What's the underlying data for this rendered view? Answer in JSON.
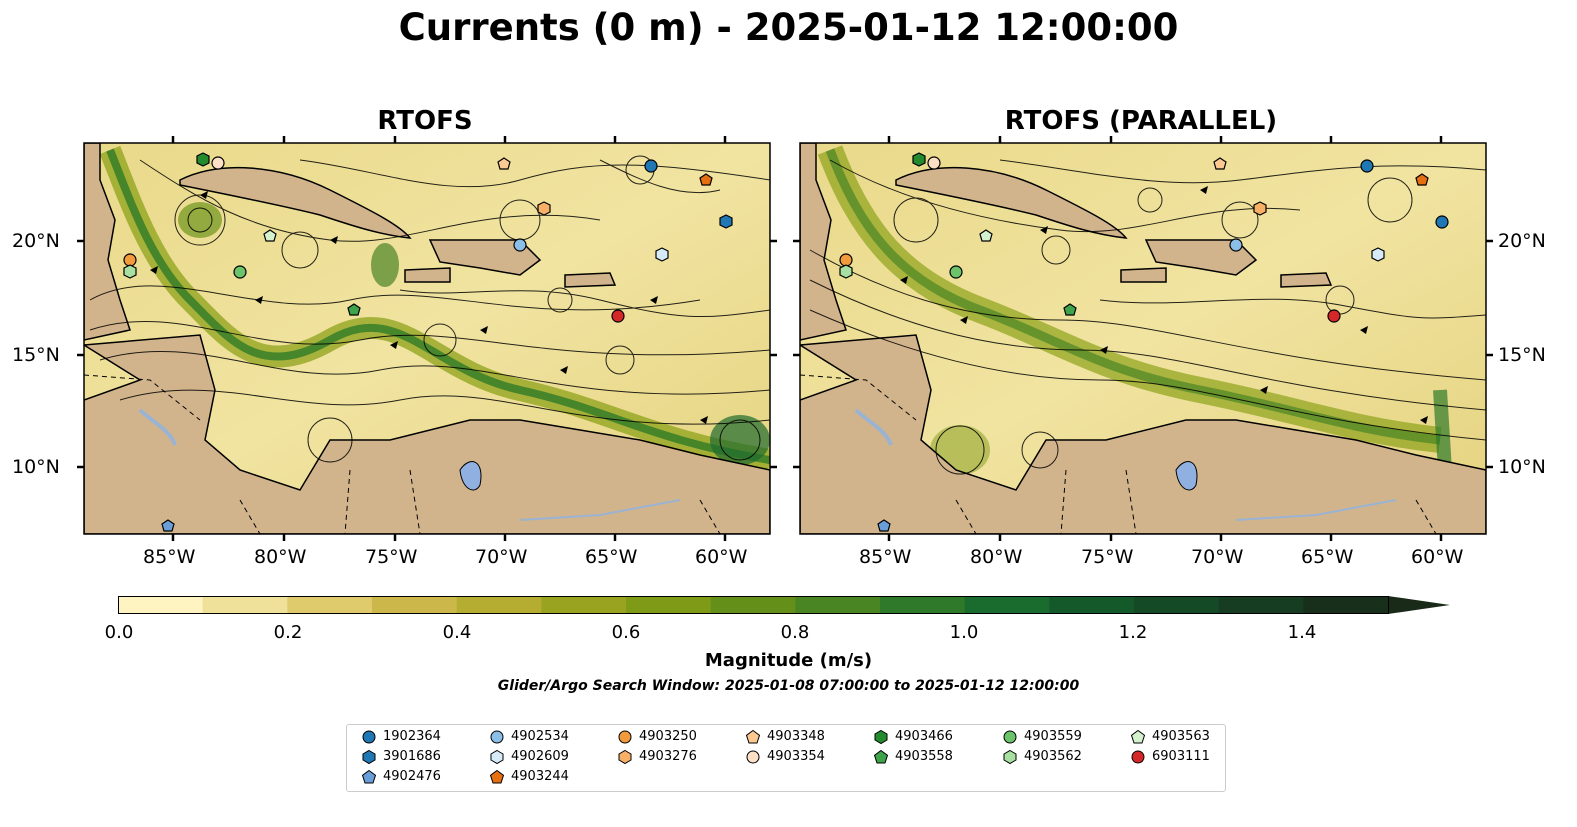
{
  "title": "Currents (0 m) - 2025-01-12 12:00:00",
  "panels": [
    {
      "title": "RTOFS"
    },
    {
      "title": "RTOFS (PARALLEL)"
    }
  ],
  "lat_labels": [
    "20°N",
    "15°N",
    "10°N"
  ],
  "lon_labels": [
    "85°W",
    "80°W",
    "75°W",
    "70°W",
    "65°W",
    "60°W"
  ],
  "colorbar": {
    "label": "Magnitude (m/s)",
    "ticks": [
      "0.0",
      "0.2",
      "0.4",
      "0.6",
      "0.8",
      "1.0",
      "1.2",
      "1.4"
    ],
    "colors": [
      "#fdf4c2",
      "#efe09a",
      "#dfca6c",
      "#ccb84a",
      "#b4ad32",
      "#9aa31f",
      "#7e9a16",
      "#64901a",
      "#4a8524",
      "#2e7a2a",
      "#1a6b2e",
      "#14592a",
      "#144a26",
      "#163c22",
      "#182f1c",
      "#1a2a18"
    ],
    "extend": "max"
  },
  "subtitle": "Glider/Argo Search Window: 2025-01-08 07:00:00 to 2025-01-12 12:00:00",
  "legend": [
    {
      "id": "1902364",
      "marker": "circle",
      "color": "#1f77b4"
    },
    {
      "id": "3901686",
      "marker": "hexagon",
      "color": "#1f77b4"
    },
    {
      "id": "4902476",
      "marker": "pentagon",
      "color": "#6a9ed8"
    },
    {
      "id": "4902534",
      "marker": "circle",
      "color": "#8cbfe8"
    },
    {
      "id": "4902609",
      "marker": "hexagon",
      "color": "#d6eaf8"
    },
    {
      "id": "4903244",
      "marker": "pentagon",
      "color": "#e6700f"
    },
    {
      "id": "4903250",
      "marker": "circle",
      "color": "#f39a3c"
    },
    {
      "id": "4903276",
      "marker": "hexagon",
      "color": "#f7b066"
    },
    {
      "id": "4903348",
      "marker": "pentagon",
      "color": "#fbc991"
    },
    {
      "id": "4903354",
      "marker": "circle",
      "color": "#fde0c5"
    },
    {
      "id": "4903466",
      "marker": "hexagon",
      "color": "#238b2d"
    },
    {
      "id": "4903558",
      "marker": "pentagon",
      "color": "#3ea34a"
    },
    {
      "id": "4903559",
      "marker": "circle",
      "color": "#6cc36a"
    },
    {
      "id": "4903562",
      "marker": "hexagon",
      "color": "#a8e0a2"
    },
    {
      "id": "4903563",
      "marker": "pentagon",
      "color": "#d5f2cf"
    },
    {
      "id": "6903111",
      "marker": "circle",
      "color": "#d62728"
    }
  ],
  "colors": {
    "land": "#d2b48c",
    "lake": "#8fb0e0",
    "river": "#9ab3d2"
  }
}
